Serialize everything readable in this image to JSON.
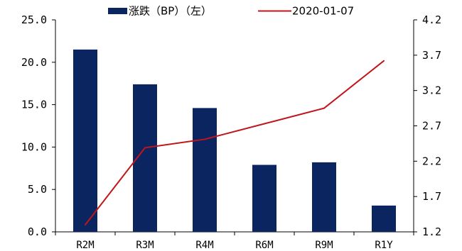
{
  "chart_data": {
    "type": "bar",
    "categories": [
      "R2M",
      "R3M",
      "R4M",
      "R6M",
      "R9M",
      "R1Y"
    ],
    "series": [
      {
        "name": "涨跌（BP）（左）",
        "type": "bar",
        "axis": "left",
        "color": "#0b2560",
        "values": [
          21.5,
          17.4,
          14.6,
          7.9,
          8.2,
          3.1
        ]
      },
      {
        "name": "2020-01-07",
        "type": "line",
        "axis": "right",
        "color": "#c0161b",
        "values": [
          1.3,
          2.39,
          2.51,
          2.73,
          2.95,
          3.62
        ]
      }
    ],
    "y_left": {
      "min": 0,
      "max": 25,
      "ticks": [
        "0.0",
        "5.0",
        "10.0",
        "15.0",
        "20.0",
        "25.0"
      ]
    },
    "y_right": {
      "min": 1.2,
      "max": 4.2,
      "ticks": [
        "1.2",
        "1.7",
        "2.2",
        "2.7",
        "3.2",
        "3.7",
        "4.2"
      ]
    },
    "legend_position": "top",
    "grid": false
  }
}
